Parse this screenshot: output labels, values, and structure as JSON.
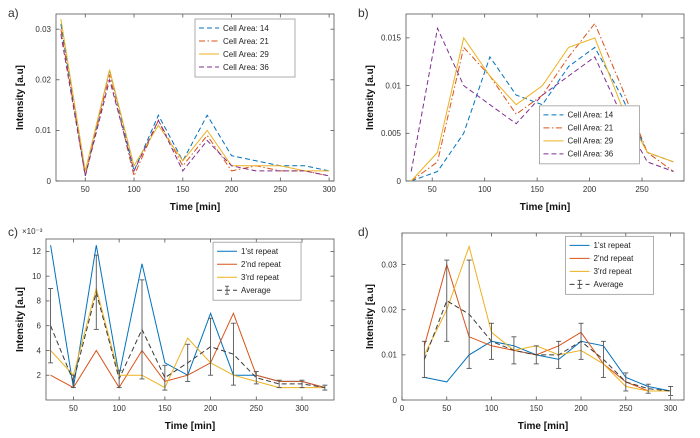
{
  "figure": {
    "background": "#ffffff"
  },
  "chart_data": [
    {
      "panel_label": "a)",
      "type": "line",
      "xlabel": "Time [min]",
      "ylabel": "Intensity [a.u]",
      "x": [
        25,
        50,
        75,
        100,
        125,
        150,
        175,
        200,
        225,
        250,
        275,
        300
      ],
      "series": [
        {
          "name": "Cell Area: 14",
          "color": "#0072BD",
          "style": "dashed",
          "values": [
            0.031,
            0.001,
            0.022,
            0.002,
            0.013,
            0.004,
            0.013,
            0.005,
            0.004,
            0.003,
            0.003,
            0.002
          ]
        },
        {
          "name": "Cell Area: 21",
          "color": "#D95319",
          "style": "dashdot",
          "values": [
            0.03,
            0.001,
            0.021,
            0.001,
            0.012,
            0.003,
            0.009,
            0.002,
            0.003,
            0.002,
            0.002,
            0.001
          ]
        },
        {
          "name": "Cell Area: 29",
          "color": "#EDB120",
          "style": "solid",
          "values": [
            0.032,
            0.002,
            0.022,
            0.003,
            0.011,
            0.004,
            0.01,
            0.003,
            0.003,
            0.003,
            0.002,
            0.002
          ]
        },
        {
          "name": "Cell Area: 36",
          "color": "#7E2F8E",
          "style": "dashed",
          "values": [
            0.029,
            0.001,
            0.02,
            0.002,
            0.012,
            0.002,
            0.008,
            0.003,
            0.002,
            0.002,
            0.002,
            0.001
          ]
        }
      ],
      "xlim": [
        20,
        305
      ],
      "ylim": [
        0,
        0.033
      ],
      "x_ticks": [
        50,
        100,
        150,
        200,
        250,
        300
      ],
      "y_ticks": [
        0,
        0.01,
        0.02,
        0.03
      ],
      "y_tick_labels": [
        "0",
        "0.01",
        "0.02",
        "0.03"
      ],
      "legend": {
        "position": "top-right",
        "x": 0.5,
        "y": 0.03,
        "w": 100
      }
    },
    {
      "panel_label": "b)",
      "type": "line",
      "xlabel": "Time [min]",
      "ylabel": "Intensity [a.u]",
      "x": [
        30,
        55,
        80,
        105,
        130,
        155,
        180,
        205,
        230,
        255,
        280
      ],
      "series": [
        {
          "name": "Cell Area: 14",
          "color": "#0072BD",
          "style": "dashed",
          "values": [
            0,
            0.001,
            0.005,
            0.013,
            0.009,
            0.008,
            0.012,
            0.014,
            0.009,
            0.003,
            0.002
          ]
        },
        {
          "name": "Cell Area: 21",
          "color": "#D95319",
          "style": "dashdot",
          "values": [
            0,
            0.002,
            0.014,
            0.011,
            0.007,
            0.009,
            0.013,
            0.0165,
            0.01,
            0.003,
            0.001
          ]
        },
        {
          "name": "Cell Area: 29",
          "color": "#EDB120",
          "style": "solid",
          "values": [
            0,
            0.003,
            0.015,
            0.011,
            0.008,
            0.01,
            0.014,
            0.015,
            0.008,
            0.003,
            0.002
          ]
        },
        {
          "name": "Cell Area: 36",
          "color": "#7E2F8E",
          "style": "dashed",
          "values": [
            0.001,
            0.016,
            0.01,
            0.008,
            0.006,
            0.009,
            0.011,
            0.013,
            0.007,
            0.002,
            0.001
          ]
        }
      ],
      "xlim": [
        25,
        290
      ],
      "ylim": [
        0,
        0.0175
      ],
      "x_ticks": [
        50,
        100,
        150,
        200,
        250
      ],
      "y_ticks": [
        0,
        0.005,
        0.01,
        0.015
      ],
      "y_tick_labels": [
        "0",
        "0.005",
        "0.01",
        "0.015"
      ],
      "legend": {
        "position": "bottom-right",
        "x": 0.48,
        "y": 0.55,
        "w": 100
      }
    },
    {
      "panel_label": "c)",
      "type": "line",
      "xlabel": "Time [min]",
      "ylabel": "Intensity [a.u]",
      "y_exponent_label": "×10⁻³",
      "y_scale_note": "values are ×10⁻³ a.u",
      "x": [
        25,
        50,
        75,
        100,
        125,
        150,
        175,
        200,
        225,
        250,
        275,
        300,
        325
      ],
      "series": [
        {
          "name": "1'st repeat",
          "color": "#0072BD",
          "style": "solid",
          "values": [
            12.5,
            1,
            12.5,
            2,
            11,
            3,
            2,
            7,
            2,
            2,
            1.5,
            1.5,
            1
          ]
        },
        {
          "name": "2'nd repeat",
          "color": "#D95319",
          "style": "solid",
          "values": [
            2,
            1,
            4,
            1,
            4,
            1.5,
            2,
            3,
            7,
            2,
            1.5,
            1.5,
            1
          ]
        },
        {
          "name": "3'rd repeat",
          "color": "#EDB120",
          "style": "solid",
          "values": [
            4,
            2,
            9,
            2,
            2,
            1,
            5,
            3,
            2,
            1.5,
            1,
            1,
            1
          ]
        },
        {
          "name": "Average",
          "color": "#3a3a3a",
          "style": "dashed",
          "values": [
            6,
            1.5,
            8.7,
            1.7,
            5.7,
            1.8,
            3,
            4.3,
            3.7,
            1.8,
            1.3,
            1.3,
            1
          ],
          "error": [
            3,
            0.5,
            3,
            0.7,
            4,
            1,
            1.5,
            2.3,
            2.5,
            0.5,
            0.3,
            0.3,
            0.2
          ]
        }
      ],
      "xlim": [
        20,
        335
      ],
      "ylim": [
        0,
        13
      ],
      "x_ticks": [
        50,
        100,
        150,
        200,
        250,
        300
      ],
      "y_ticks": [
        2,
        4,
        6,
        8,
        10,
        12
      ],
      "y_tick_labels": [
        "2",
        "4",
        "6",
        "8",
        "10",
        "12"
      ],
      "legend": {
        "position": "top-right",
        "x": 0.58,
        "y": 0.02,
        "w": 88
      }
    },
    {
      "panel_label": "d)",
      "type": "line",
      "xlabel": "Time [min]",
      "ylabel": "Intensity [a.u]",
      "x": [
        25,
        50,
        75,
        100,
        125,
        150,
        175,
        200,
        225,
        250,
        275,
        300
      ],
      "series": [
        {
          "name": "1'st repeat",
          "color": "#0072BD",
          "style": "solid",
          "values": [
            0.005,
            0.004,
            0.01,
            0.013,
            0.012,
            0.01,
            0.009,
            0.013,
            0.012,
            0.005,
            0.003,
            0.002
          ]
        },
        {
          "name": "2'nd repeat",
          "color": "#D95319",
          "style": "solid",
          "values": [
            0.012,
            0.03,
            0.014,
            0.012,
            0.011,
            0.01,
            0.012,
            0.015,
            0.008,
            0.004,
            0.002,
            0.002
          ]
        },
        {
          "name": "3'rd repeat",
          "color": "#EDB120",
          "style": "solid",
          "values": [
            0.01,
            0.02,
            0.034,
            0.015,
            0.011,
            0.012,
            0.01,
            0.011,
            0.008,
            0.003,
            0.002,
            0.002
          ]
        },
        {
          "name": "Average",
          "color": "#3a3a3a",
          "style": "dashed",
          "values": [
            0.009,
            0.022,
            0.019,
            0.013,
            0.011,
            0.01,
            0.01,
            0.013,
            0.009,
            0.004,
            0.0025,
            0.002
          ],
          "error": [
            0.004,
            0.009,
            0.012,
            0.004,
            0.003,
            0.002,
            0.003,
            0.004,
            0.004,
            0.002,
            0.001,
            0.001
          ]
        }
      ],
      "xlim": [
        0,
        315
      ],
      "ylim": [
        0,
        0.037
      ],
      "x_ticks": [
        0,
        50,
        100,
        150,
        200,
        250,
        300
      ],
      "y_ticks": [
        0,
        0.01,
        0.02,
        0.03
      ],
      "y_tick_labels": [
        "0",
        "0.01",
        "0.02",
        "0.03"
      ],
      "legend": {
        "position": "top-right",
        "x": 0.58,
        "y": 0.02,
        "w": 88
      }
    }
  ]
}
